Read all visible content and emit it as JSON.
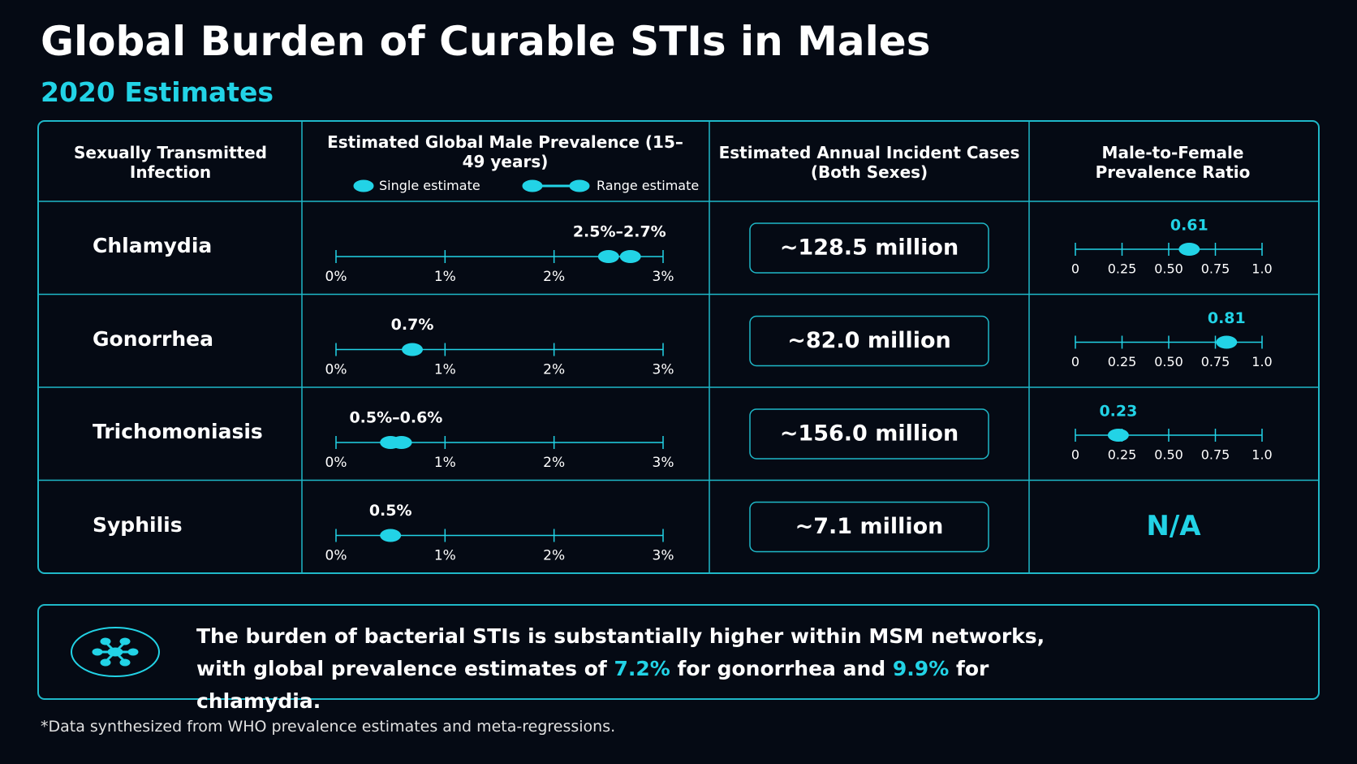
{
  "header": {
    "title": "Global Burden of Curable STIs in Males",
    "subtitle": "2020 Estimates"
  },
  "table": {
    "columns": [
      "Sexually Transmitted Infection",
      "Estimated Global Male Prevalence (15–49 years)",
      "Estimated Annual Incident Cases (Both Sexes)",
      "Male-to-Female Prevalence Ratio"
    ],
    "legend": {
      "single": "Single estimate",
      "range": "Range estimate"
    },
    "prevalence_axis": {
      "xlim": [
        0,
        3
      ],
      "xticks": [
        {
          "value": 0,
          "label": "0%"
        },
        {
          "value": 1,
          "label": "1%"
        },
        {
          "value": 2,
          "label": "2%"
        },
        {
          "value": 3,
          "label": "3%"
        }
      ]
    },
    "ratio_axis": {
      "xlim": [
        0,
        1
      ],
      "xticks": [
        0,
        0.25,
        {
          "value": 0.5,
          "label": "0.50"
        },
        0.75,
        {
          "value": 1,
          "label": "1.0"
        }
      ]
    },
    "rows": [
      {
        "name": "Chlamydia",
        "prevalence": [
          2.5,
          2.7
        ],
        "prevalence_label": "2.5%–2.7%",
        "cases": "~128.5 million",
        "ratio": 0.61
      },
      {
        "name": "Gonorrhea",
        "prevalence": [
          0.7
        ],
        "prevalence_label": "0.7%",
        "cases": "~82.0 million",
        "ratio": 0.81
      },
      {
        "name": "Trichomoniasis",
        "prevalence": [
          0.5,
          0.6
        ],
        "prevalence_label": "0.5%–0.6%",
        "cases": "~156.0 million",
        "ratio": 0.23
      },
      {
        "name": "Syphilis",
        "prevalence": [
          0.5
        ],
        "prevalence_label": "0.5%",
        "cases": "~7.1 million",
        "ratio": "N/A"
      }
    ]
  },
  "callout": {
    "parts": [
      "The burden of bacterial STIs is substantially higher within MSM networks, with global prevalence estimates of ",
      "7.2%",
      " for gonorrhea and ",
      "9.9%",
      " for chlamydia."
    ]
  },
  "footnote": "*Data synthesized from WHO prevalence estimates and meta-regressions."
}
